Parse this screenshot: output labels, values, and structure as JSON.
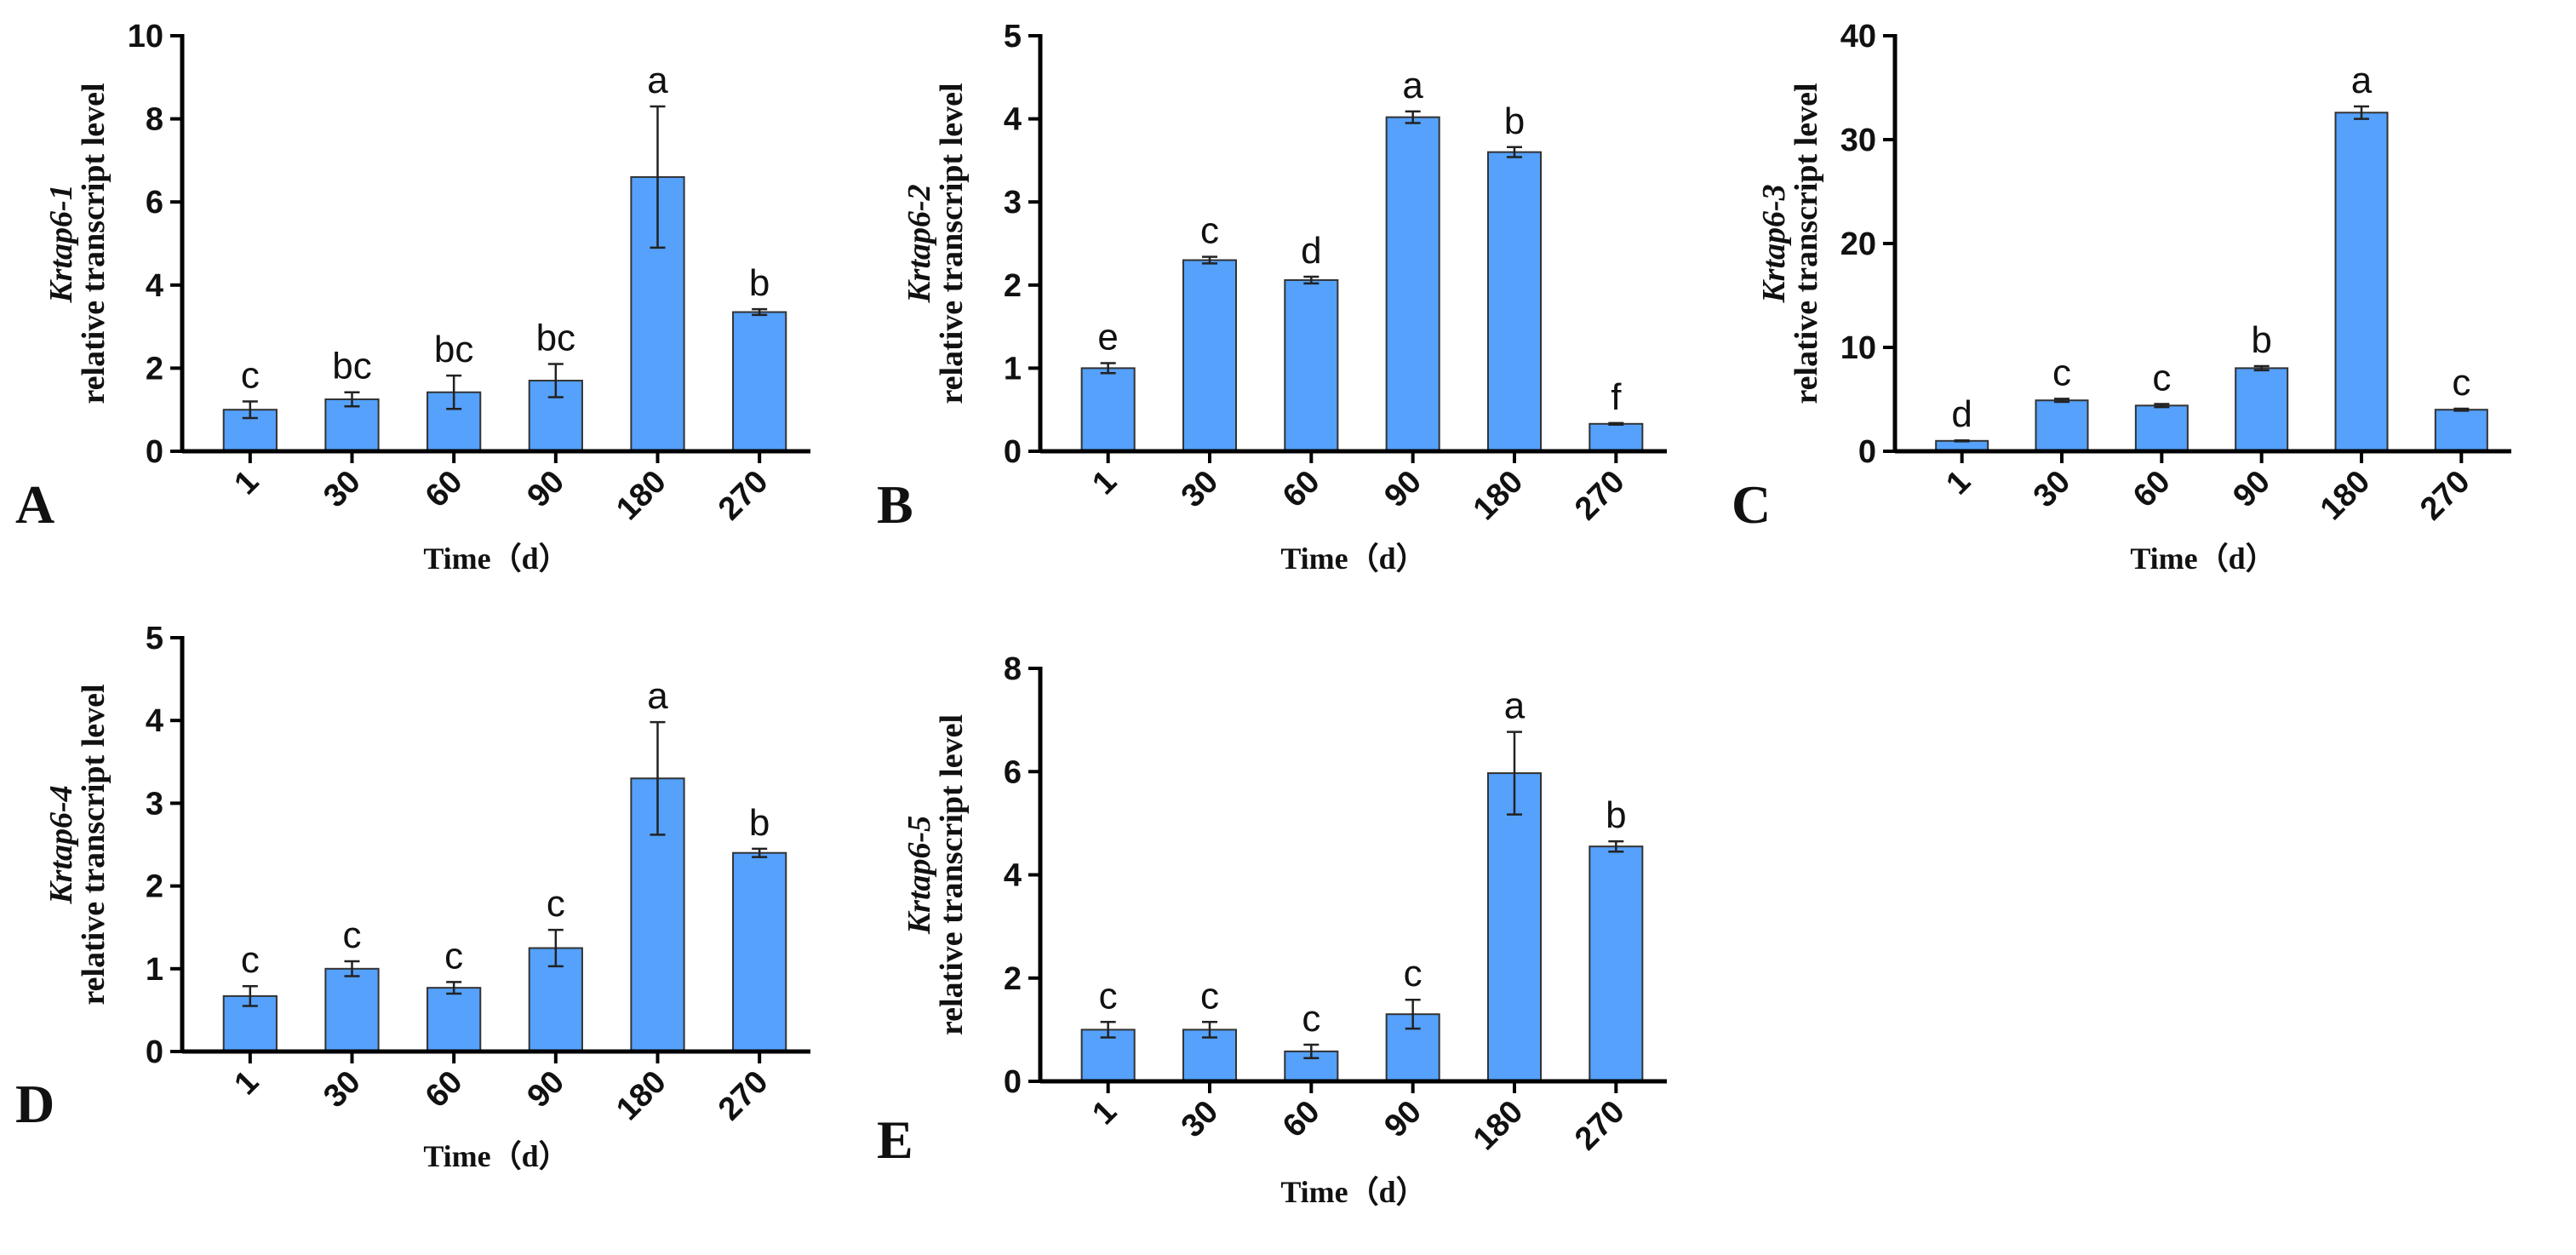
{
  "colors": {
    "bar": "#55a1fb",
    "bar_edge": "#333333",
    "axis": "#000000"
  },
  "chart_data": [
    {
      "type": "bar",
      "panel": "A",
      "gene": "Krtap6-1",
      "ylabel": "relative transcript level",
      "xlabel": "Time（d）",
      "categories": [
        "1",
        "30",
        "60",
        "90",
        "180",
        "270"
      ],
      "values": [
        1.0,
        1.25,
        1.42,
        1.7,
        6.6,
        3.35
      ],
      "errors": [
        0.2,
        0.17,
        0.4,
        0.4,
        1.7,
        0.07
      ],
      "significance": [
        "c",
        "bc",
        "bc",
        "bc",
        "a",
        "b"
      ],
      "ylim": [
        0,
        10
      ],
      "yticks": [
        0,
        2,
        4,
        6,
        8,
        10
      ]
    },
    {
      "type": "bar",
      "panel": "B",
      "gene": "Krtap6-2",
      "ylabel": "relative transcript level",
      "xlabel": "Time（d）",
      "categories": [
        "1",
        "30",
        "60",
        "90",
        "180",
        "270"
      ],
      "values": [
        1.0,
        2.3,
        2.06,
        4.02,
        3.6,
        0.33
      ],
      "errors": [
        0.06,
        0.04,
        0.04,
        0.07,
        0.06,
        0.01
      ],
      "significance": [
        "e",
        "c",
        "d",
        "a",
        "b",
        "f"
      ],
      "ylim": [
        0,
        5
      ],
      "yticks": [
        0,
        1,
        2,
        3,
        4,
        5
      ]
    },
    {
      "type": "bar",
      "panel": "C",
      "gene": "Krtap6-3",
      "ylabel": "relative transcript level",
      "xlabel": "Time（d）",
      "categories": [
        "1",
        "30",
        "60",
        "90",
        "180",
        "270"
      ],
      "values": [
        1.0,
        4.9,
        4.4,
        8.0,
        32.6,
        4.0
      ],
      "errors": [
        0.05,
        0.15,
        0.15,
        0.2,
        0.6,
        0.1
      ],
      "significance": [
        "d",
        "c",
        "c",
        "b",
        "a",
        "c"
      ],
      "ylim": [
        0,
        40
      ],
      "yticks": [
        0,
        10,
        20,
        30,
        40
      ]
    },
    {
      "type": "bar",
      "panel": "D",
      "gene": "Krtap6-4",
      "ylabel": "relative transcript level",
      "xlabel": "Time（d）",
      "categories": [
        "1",
        "30",
        "60",
        "90",
        "180",
        "270"
      ],
      "values": [
        0.67,
        1.0,
        0.77,
        1.25,
        3.3,
        2.4
      ],
      "errors": [
        0.12,
        0.09,
        0.07,
        0.22,
        0.68,
        0.05
      ],
      "significance": [
        "c",
        "c",
        "c",
        "c",
        "a",
        "b"
      ],
      "ylim": [
        0,
        5
      ],
      "yticks": [
        0,
        1,
        2,
        3,
        4,
        5
      ]
    },
    {
      "type": "bar",
      "panel": "E",
      "gene": "Krtap6-5",
      "ylabel": "relative transcript level",
      "xlabel": "Time（d）",
      "categories": [
        "1",
        "30",
        "60",
        "90",
        "180",
        "270"
      ],
      "values": [
        1.0,
        1.0,
        0.58,
        1.3,
        5.97,
        4.55
      ],
      "errors": [
        0.15,
        0.15,
        0.13,
        0.28,
        0.8,
        0.1
      ],
      "significance": [
        "c",
        "c",
        "c",
        "c",
        "a",
        "b"
      ],
      "ylim": [
        0,
        8
      ],
      "yticks": [
        0,
        2,
        4,
        6,
        8
      ]
    }
  ]
}
